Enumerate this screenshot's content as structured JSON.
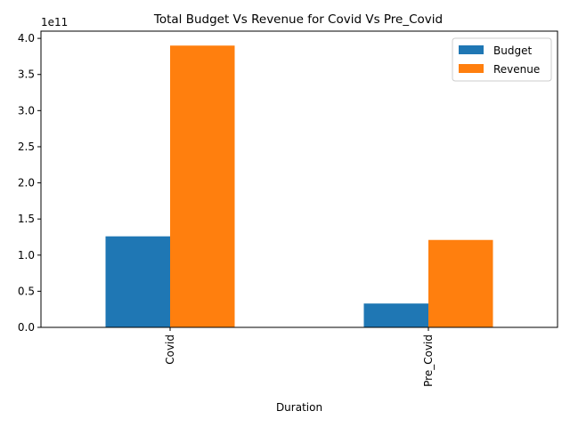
{
  "chart_data": {
    "type": "bar",
    "title": "Total Budget Vs Revenue for Covid Vs Pre_Covid",
    "xlabel": "Duration",
    "ylabel": "",
    "categories": [
      "Covid",
      "Pre_Covid"
    ],
    "series": [
      {
        "name": "Budget",
        "color": "#1f77b4",
        "values": [
          126000000000.0,
          33000000000.0
        ]
      },
      {
        "name": "Revenue",
        "color": "#ff7f0e",
        "values": [
          390000000000.0,
          121000000000.0
        ]
      }
    ],
    "ylim": [
      0,
      410000000000.0
    ],
    "yticks": [
      "0.0",
      "0.5",
      "1.0",
      "1.5",
      "2.0",
      "2.5",
      "3.0",
      "3.5",
      "4.0"
    ],
    "ytick_values": [
      0,
      50000000000.0,
      100000000000.0,
      150000000000.0,
      200000000000.0,
      250000000000.0,
      300000000000.0,
      350000000000.0,
      400000000000.0
    ],
    "y_offset_label": "1e11",
    "grid": false,
    "legend_position": "top-right"
  }
}
